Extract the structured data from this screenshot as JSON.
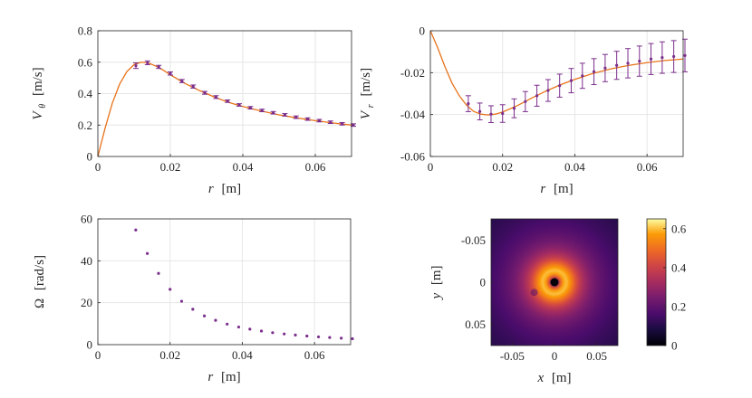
{
  "chart_data": [
    {
      "id": "vtheta",
      "type": "line+errorbar",
      "xlabel": "r",
      "xunit": "[m]",
      "ylabel_sym": "V",
      "ylabel_sub": "θ",
      "yunit": "[m/s]",
      "xlim": [
        0,
        0.07
      ],
      "ylim": [
        0,
        0.8
      ],
      "xticks": [
        0,
        0.02,
        0.04,
        0.06
      ],
      "xtick_labels": [
        "0",
        "0.02",
        "0.04",
        "0.06"
      ],
      "yticks": [
        0,
        0.2,
        0.4,
        0.6,
        0.8
      ],
      "ytick_labels": [
        "0",
        "0.2",
        "0.4",
        "0.6",
        "0.8"
      ],
      "grid": true,
      "model_curve": {
        "color": "#e8731a",
        "x": [
          0,
          0.002,
          0.004,
          0.006,
          0.008,
          0.01,
          0.012,
          0.014,
          0.016,
          0.018,
          0.02,
          0.024,
          0.028,
          0.032,
          0.036,
          0.04,
          0.045,
          0.05,
          0.055,
          0.06,
          0.065,
          0.07
        ],
        "y": [
          0,
          0.18,
          0.34,
          0.46,
          0.54,
          0.585,
          0.6,
          0.595,
          0.575,
          0.55,
          0.52,
          0.465,
          0.42,
          0.38,
          0.345,
          0.318,
          0.29,
          0.265,
          0.245,
          0.228,
          0.213,
          0.2
        ]
      },
      "measurements": {
        "color": "#7b2e8c",
        "x": [
          0.0105,
          0.0137,
          0.0168,
          0.02,
          0.0232,
          0.0263,
          0.0295,
          0.0326,
          0.0358,
          0.039,
          0.0421,
          0.0453,
          0.0484,
          0.0516,
          0.0547,
          0.0579,
          0.0611,
          0.0642,
          0.0674,
          0.0705
        ],
        "y": [
          0.578,
          0.596,
          0.57,
          0.528,
          0.48,
          0.445,
          0.405,
          0.378,
          0.352,
          0.328,
          0.31,
          0.293,
          0.278,
          0.265,
          0.25,
          0.238,
          0.228,
          0.218,
          0.208,
          0.2
        ],
        "err": [
          0.018,
          0.012,
          0.01,
          0.01,
          0.01,
          0.01,
          0.009,
          0.009,
          0.008,
          0.008,
          0.008,
          0.008,
          0.008,
          0.008,
          0.008,
          0.008,
          0.008,
          0.008,
          0.008,
          0.008
        ]
      }
    },
    {
      "id": "vr",
      "type": "line+errorbar",
      "xlabel": "r",
      "xunit": "[m]",
      "ylabel_sym": "V",
      "ylabel_sub": "r",
      "yunit": "[m/s]",
      "xlim": [
        0,
        0.07
      ],
      "ylim": [
        -0.06,
        0
      ],
      "xticks": [
        0,
        0.02,
        0.04,
        0.06
      ],
      "xtick_labels": [
        "0",
        "0.02",
        "0.04",
        "0.06"
      ],
      "yticks": [
        -0.06,
        -0.04,
        -0.02,
        0
      ],
      "ytick_labels": [
        "-0.06",
        "-0.04",
        "-0.02",
        "0"
      ],
      "grid": true,
      "model_curve": {
        "color": "#e8731a",
        "x": [
          0,
          0.002,
          0.004,
          0.006,
          0.008,
          0.01,
          0.012,
          0.014,
          0.016,
          0.018,
          0.02,
          0.024,
          0.028,
          0.032,
          0.036,
          0.04,
          0.045,
          0.05,
          0.055,
          0.06,
          0.065,
          0.07
        ],
        "y": [
          0,
          -0.008,
          -0.017,
          -0.025,
          -0.031,
          -0.0355,
          -0.0385,
          -0.0398,
          -0.0402,
          -0.0398,
          -0.0388,
          -0.0358,
          -0.0322,
          -0.0288,
          -0.0258,
          -0.0232,
          -0.0204,
          -0.0182,
          -0.0165,
          -0.0152,
          -0.0142,
          -0.0135
        ]
      },
      "measurements": {
        "color": "#7b2e8c",
        "x": [
          0.0105,
          0.0137,
          0.0168,
          0.02,
          0.0232,
          0.0263,
          0.0295,
          0.0326,
          0.0358,
          0.039,
          0.0421,
          0.0453,
          0.0484,
          0.0516,
          0.0547,
          0.0579,
          0.0611,
          0.0642,
          0.0674,
          0.0705
        ],
        "y": [
          -0.0348,
          -0.0385,
          -0.0398,
          -0.0395,
          -0.037,
          -0.0338,
          -0.031,
          -0.0285,
          -0.0262,
          -0.0238,
          -0.0215,
          -0.0195,
          -0.0178,
          -0.0165,
          -0.0155,
          -0.0145,
          -0.0135,
          -0.0128,
          -0.0123,
          -0.0118
        ],
        "err": [
          0.0038,
          0.004,
          0.004,
          0.0042,
          0.0045,
          0.0048,
          0.005,
          0.0052,
          0.0055,
          0.0058,
          0.006,
          0.0062,
          0.0065,
          0.0067,
          0.007,
          0.0072,
          0.0074,
          0.0075,
          0.0076,
          0.0078
        ]
      }
    },
    {
      "id": "omega",
      "type": "scatter",
      "xlabel": "r",
      "xunit": "[m]",
      "ylabel_sym": "Ω",
      "yunit": "[rad/s]",
      "xlim": [
        0,
        0.07
      ],
      "ylim": [
        0,
        60
      ],
      "xticks": [
        0,
        0.02,
        0.04,
        0.06
      ],
      "xtick_labels": [
        "0",
        "0.02",
        "0.04",
        "0.06"
      ],
      "yticks": [
        0,
        20,
        40,
        60
      ],
      "ytick_labels": [
        "0",
        "20",
        "40",
        "60"
      ],
      "grid": true,
      "points": {
        "color": "#7b2e8c",
        "x": [
          0.0105,
          0.0137,
          0.0168,
          0.02,
          0.0232,
          0.0263,
          0.0295,
          0.0326,
          0.0358,
          0.039,
          0.0421,
          0.0453,
          0.0484,
          0.0516,
          0.0547,
          0.0579,
          0.0611,
          0.0642,
          0.0674,
          0.0705
        ],
        "y": [
          54.7,
          43.5,
          34.0,
          26.4,
          20.7,
          16.9,
          13.7,
          11.6,
          9.8,
          8.4,
          7.4,
          6.5,
          5.7,
          5.1,
          4.6,
          4.1,
          3.7,
          3.4,
          3.1,
          2.8
        ]
      }
    },
    {
      "id": "heatmap",
      "type": "heatmap",
      "colormap": "inferno",
      "xlabel": "x",
      "xunit": "[m]",
      "ylabel_sym": "y",
      "yunit": "[m]",
      "xlim": [
        -0.075,
        0.075
      ],
      "ylim": [
        -0.075,
        0.075
      ],
      "xticks": [
        -0.05,
        0,
        0.05
      ],
      "xtick_labels": [
        "-0.05",
        "0",
        "0.05"
      ],
      "yticks": [
        -0.05,
        0,
        0.05
      ],
      "ytick_labels": [
        "-0.05",
        "0",
        "0.05"
      ],
      "y_reversed": true,
      "field": "azimuthal speed magnitude",
      "core_radius": 0.0135,
      "peak": 0.6,
      "colorbar": {
        "limits": [
          0,
          0.65
        ],
        "ticks": [
          0,
          0.2,
          0.4,
          0.6
        ],
        "tick_labels": [
          "0",
          "0.2",
          "0.4",
          "0.6"
        ]
      }
    }
  ]
}
